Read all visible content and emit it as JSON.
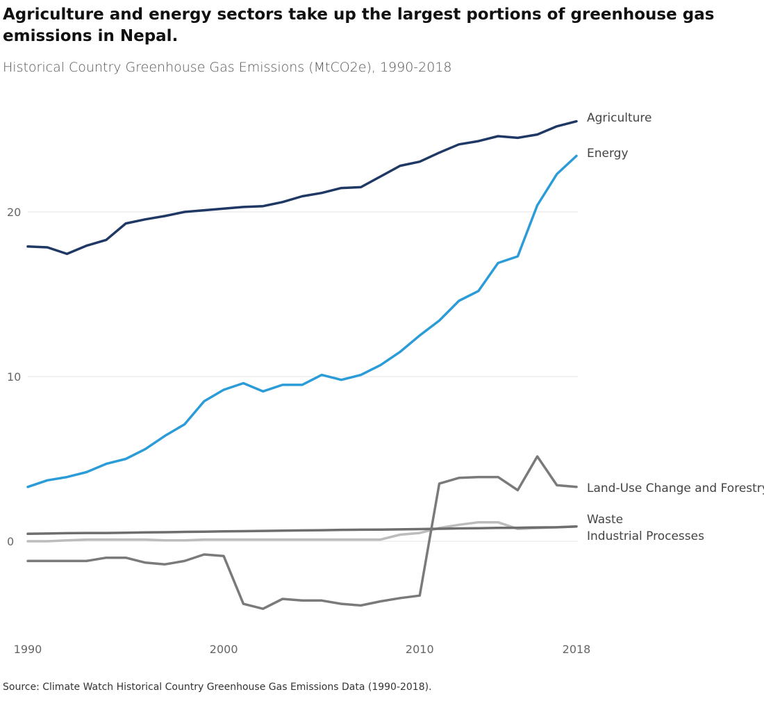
{
  "title": "Agriculture and energy sectors take up the largest portions of greenhouse gas emissions in Nepal.",
  "subtitle": "Historical Country Greenhouse Gas Emissions (MtCO2e), 1990-2018",
  "source": "Source: Climate Watch Historical Country Greenhouse Gas Emissions Data (1990-2018).",
  "chart_data": {
    "type": "line",
    "title": "Agriculture and energy sectors take up the largest portions of greenhouse gas emissions in Nepal.",
    "subtitle": "Historical Country Greenhouse Gas Emissions (MtCO2e), 1990-2018",
    "xlabel": "",
    "ylabel": "",
    "x": [
      1990,
      1991,
      1992,
      1993,
      1994,
      1995,
      1996,
      1997,
      1998,
      1999,
      2000,
      2001,
      2002,
      2003,
      2004,
      2005,
      2006,
      2007,
      2008,
      2009,
      2010,
      2011,
      2012,
      2013,
      2014,
      2015,
      2016,
      2017,
      2018
    ],
    "x_ticks": [
      1990,
      2000,
      2010,
      2018
    ],
    "y_ticks": [
      0,
      10,
      20
    ],
    "ylim": [
      -5,
      27
    ],
    "grid": "horizontal",
    "legend": "direct labels at right end of lines",
    "series": [
      {
        "name": "Agriculture",
        "color": "#1f3864",
        "values": [
          17.9,
          17.85,
          17.45,
          17.95,
          18.3,
          19.3,
          19.55,
          19.75,
          20.0,
          20.1,
          20.2,
          20.3,
          20.35,
          20.6,
          20.95,
          21.15,
          21.45,
          21.5,
          22.15,
          22.8,
          23.05,
          23.6,
          24.1,
          24.3,
          24.6,
          24.5,
          24.7,
          25.2,
          25.5
        ]
      },
      {
        "name": "Energy",
        "color": "#2b9cd8",
        "values": [
          3.3,
          3.7,
          3.9,
          4.2,
          4.7,
          5.0,
          5.6,
          6.4,
          7.1,
          8.5,
          9.2,
          9.6,
          9.1,
          9.5,
          9.5,
          10.1,
          9.8,
          10.1,
          10.7,
          11.5,
          12.5,
          13.4,
          14.6,
          15.2,
          16.9,
          17.3,
          20.4,
          22.3,
          23.4
        ]
      },
      {
        "name": "Land-Use Change and Forestry",
        "color": "#7a7a7a",
        "values": [
          -1.2,
          -1.2,
          -1.2,
          -1.2,
          -1.0,
          -1.0,
          -1.3,
          -1.4,
          -1.2,
          -0.8,
          -0.9,
          -3.8,
          -4.1,
          -3.5,
          -3.6,
          -3.6,
          -3.8,
          -3.9,
          -3.65,
          -3.45,
          -3.3,
          3.5,
          3.85,
          3.9,
          3.9,
          3.1,
          5.15,
          3.4,
          3.3
        ]
      },
      {
        "name": "Waste",
        "color": "#6e6e6e",
        "values": [
          0.45,
          0.47,
          0.49,
          0.5,
          0.5,
          0.52,
          0.54,
          0.55,
          0.57,
          0.58,
          0.6,
          0.61,
          0.63,
          0.64,
          0.66,
          0.67,
          0.69,
          0.7,
          0.71,
          0.72,
          0.74,
          0.76,
          0.78,
          0.79,
          0.81,
          0.82,
          0.84,
          0.85,
          0.9
        ]
      },
      {
        "name": "Industrial Processes",
        "color": "#bcbcbc",
        "values": [
          0.0,
          0.0,
          0.05,
          0.1,
          0.1,
          0.1,
          0.1,
          0.05,
          0.05,
          0.1,
          0.1,
          0.1,
          0.1,
          0.1,
          0.1,
          0.1,
          0.1,
          0.1,
          0.1,
          0.4,
          0.5,
          0.8,
          1.0,
          1.15,
          1.15,
          0.75,
          0.8,
          0.85,
          0.9
        ]
      }
    ]
  }
}
